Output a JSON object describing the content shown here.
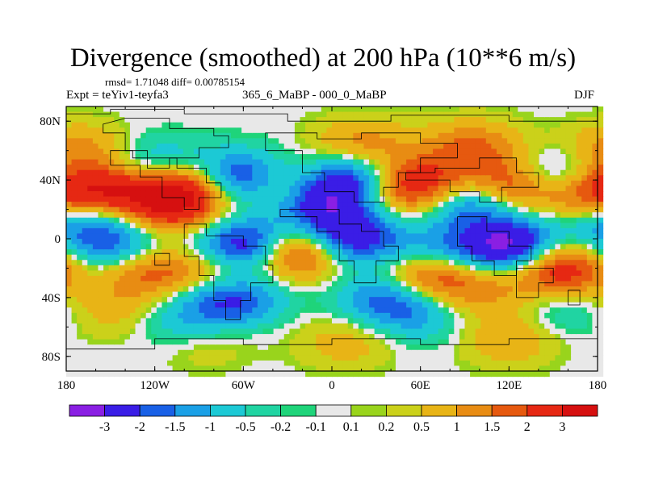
{
  "chart_data": {
    "type": "heatmap",
    "title": "Divergence (smoothed) at 200 hPa (10**6 m/s)",
    "stats_line": "rmsd= 1.71048 diff= 0.00785154",
    "experiment": "Expt = teYiv1-teyfa3",
    "period": "365_6_MaBP - 000_0_MaBP",
    "season": "DJF",
    "x_axis": {
      "range": [
        -180,
        180
      ],
      "ticks": [
        -180,
        -120,
        -60,
        0,
        60,
        120,
        180
      ],
      "tick_labels": [
        "180",
        "120W",
        "60W",
        "0",
        "60E",
        "120E",
        "180"
      ]
    },
    "y_axis": {
      "range": [
        -90,
        90
      ],
      "ticks": [
        80,
        40,
        0,
        -40,
        -80
      ],
      "tick_labels": [
        "80N",
        "40N",
        "0",
        "40S",
        "80S"
      ]
    },
    "colorbar": {
      "levels": [
        "-3",
        "-2",
        "-1.5",
        "-1",
        "-0.5",
        "-0.2",
        "-0.1",
        "0.1",
        "0.2",
        "0.5",
        "1",
        "1.5",
        "2",
        "3"
      ],
      "colors": [
        "#8a1fe3",
        "#3a1de6",
        "#1960e6",
        "#1aa0e6",
        "#1cc9d5",
        "#20d4a2",
        "#1fd47a",
        "#e8e8e8",
        "#99d41c",
        "#cbd11a",
        "#e8b416",
        "#e88c13",
        "#e6590f",
        "#e62813",
        "#d61010"
      ]
    },
    "field_features": [
      {
        "lon": -155,
        "lat": 32,
        "value": 2.6
      },
      {
        "lon": -100,
        "lat": 35,
        "value": 2.8
      },
      {
        "lon": -35,
        "lat": 34,
        "value": 2.2
      },
      {
        "lon": 55,
        "lat": 36,
        "value": 3.2
      },
      {
        "lon": 125,
        "lat": 36,
        "value": 3.2
      },
      {
        "lon": 170,
        "lat": 32,
        "value": 2.2
      },
      {
        "lon": -170,
        "lat": 60,
        "value": 1.3
      },
      {
        "lon": 20,
        "lat": 62,
        "value": 1.5
      },
      {
        "lon": 95,
        "lat": 62,
        "value": 1.6
      },
      {
        "lon": -110,
        "lat": 22,
        "value": 2.2
      },
      {
        "lon": -62,
        "lat": 40,
        "value": -3.2
      },
      {
        "lon": -10,
        "lat": 25,
        "value": -2.8
      },
      {
        "lon": 15,
        "lat": 42,
        "value": -2.5
      },
      {
        "lon": 95,
        "lat": 25,
        "value": -2.2
      },
      {
        "lon": 150,
        "lat": 40,
        "value": -2.8
      },
      {
        "lon": -165,
        "lat": 12,
        "value": -1.8
      },
      {
        "lon": -120,
        "lat": 50,
        "value": -1.4
      },
      {
        "lon": -55,
        "lat": -5,
        "value": -3.6
      },
      {
        "lon": 10,
        "lat": 0,
        "value": -3.0
      },
      {
        "lon": 120,
        "lat": -5,
        "value": -3.4
      },
      {
        "lon": -145,
        "lat": -10,
        "value": -2.3
      },
      {
        "lon": 70,
        "lat": -10,
        "value": -1.4
      },
      {
        "lon": -70,
        "lat": -40,
        "value": -2.6
      },
      {
        "lon": 40,
        "lat": -40,
        "value": -2.0
      },
      {
        "lon": -130,
        "lat": -20,
        "value": 2.4
      },
      {
        "lon": -25,
        "lat": -8,
        "value": 3.6
      },
      {
        "lon": 65,
        "lat": -25,
        "value": 2.5
      },
      {
        "lon": 155,
        "lat": -20,
        "value": 2.8
      },
      {
        "lon": -80,
        "lat": -25,
        "value": 1.6
      },
      {
        "lon": 100,
        "lat": -35,
        "value": 1.0
      },
      {
        "lon": -150,
        "lat": -50,
        "value": 0.8
      },
      {
        "lon": -90,
        "lat": -68,
        "value": 0.9
      },
      {
        "lon": 10,
        "lat": -70,
        "value": 0.8
      },
      {
        "lon": 120,
        "lat": -68,
        "value": 1.0
      },
      {
        "lon": -100,
        "lat": -60,
        "value": -1.2
      },
      {
        "lon": 60,
        "lat": -55,
        "value": -0.8
      },
      {
        "lon": 160,
        "lat": -50,
        "value": -0.7
      }
    ]
  }
}
